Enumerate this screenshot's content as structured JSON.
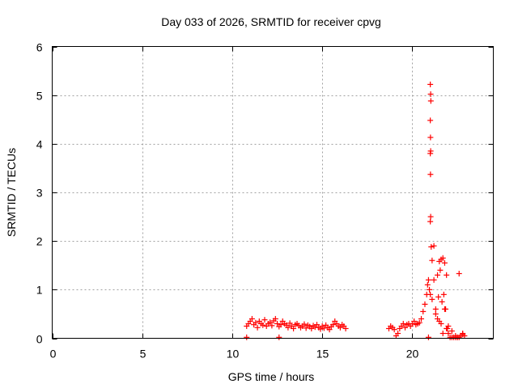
{
  "chart_data": {
    "type": "scatter",
    "title": "Day 033 of 2026, SRMTID for receiver cpvg",
    "xlabel": "GPS time / hours",
    "ylabel": "SRMTID / TECUs",
    "xlim": [
      0,
      24.5
    ],
    "ylim": [
      0,
      6
    ],
    "xticks": [
      0,
      5,
      10,
      15,
      20
    ],
    "yticks": [
      0,
      1,
      2,
      3,
      4,
      5,
      6
    ],
    "marker": "+",
    "color": "#ff0000",
    "grid": true,
    "series": [
      {
        "name": "SRMTID",
        "x": [
          10.8,
          10.9,
          11.0,
          11.1,
          11.2,
          11.3,
          11.4,
          11.5,
          11.6,
          11.7,
          11.8,
          11.9,
          12.0,
          12.1,
          12.2,
          12.3,
          12.4,
          12.5,
          12.6,
          12.7,
          12.8,
          12.9,
          13.0,
          13.1,
          13.2,
          13.3,
          13.4,
          13.5,
          13.6,
          13.7,
          13.8,
          13.9,
          14.0,
          14.1,
          14.2,
          14.3,
          14.4,
          14.5,
          14.6,
          14.7,
          14.8,
          14.9,
          15.0,
          15.1,
          15.2,
          15.3,
          15.4,
          15.5,
          15.6,
          15.7,
          15.8,
          15.9,
          16.0,
          16.1,
          16.2,
          16.3,
          10.8,
          12.6,
          18.7,
          18.8,
          18.9,
          19.0,
          19.1,
          19.2,
          19.3,
          19.4,
          19.5,
          19.6,
          19.7,
          19.8,
          19.9,
          20.0,
          20.1,
          20.2,
          20.3,
          20.4,
          20.5,
          20.6,
          20.7,
          20.8,
          20.85,
          20.9,
          20.95,
          21.0,
          21.0,
          21.02,
          21.03,
          21.0,
          21.01,
          21.02,
          21.0,
          21.01,
          21.02,
          21.0,
          21.05,
          21.1,
          21.2,
          21.3,
          21.4,
          21.45,
          21.5,
          21.55,
          21.6,
          21.65,
          21.7,
          21.75,
          21.8,
          21.85,
          21.9,
          22.0,
          22.1,
          22.2,
          22.3,
          22.4,
          22.5,
          22.6,
          22.7,
          22.8,
          22.5,
          21.2,
          21.4,
          21.6,
          21.8,
          21.95,
          20.9,
          21.1,
          21.3,
          21.5,
          21.7,
          21.9,
          22.0,
          22.2,
          22.4,
          22.6,
          22.8,
          22.9
        ],
        "y": [
          0.25,
          0.3,
          0.35,
          0.4,
          0.28,
          0.32,
          0.22,
          0.35,
          0.3,
          0.27,
          0.38,
          0.25,
          0.3,
          0.33,
          0.26,
          0.36,
          0.4,
          0.3,
          0.24,
          0.28,
          0.35,
          0.3,
          0.27,
          0.22,
          0.31,
          0.25,
          0.2,
          0.28,
          0.3,
          0.26,
          0.22,
          0.25,
          0.29,
          0.21,
          0.27,
          0.24,
          0.2,
          0.26,
          0.23,
          0.28,
          0.22,
          0.19,
          0.25,
          0.21,
          0.27,
          0.22,
          0.18,
          0.24,
          0.28,
          0.35,
          0.3,
          0.25,
          0.22,
          0.28,
          0.25,
          0.2,
          0.02,
          0.02,
          0.2,
          0.25,
          0.22,
          0.18,
          0.05,
          0.1,
          0.2,
          0.25,
          0.3,
          0.22,
          0.28,
          0.3,
          0.25,
          0.3,
          0.35,
          0.28,
          0.3,
          0.32,
          0.4,
          0.55,
          0.7,
          0.9,
          1.1,
          1.2,
          1.0,
          0.9,
          5.22,
          5.02,
          4.88,
          4.48,
          4.13,
          3.85,
          3.8,
          3.37,
          2.5,
          2.4,
          1.88,
          1.6,
          1.9,
          0.6,
          1.3,
          0.85,
          1.58,
          1.4,
          1.62,
          0.75,
          1.65,
          0.9,
          1.55,
          0.6,
          0.2,
          0.1,
          0.02,
          0.02,
          0.02,
          0.02,
          0.02,
          1.33,
          0.05,
          0.08,
          0.02,
          1.2,
          0.4,
          0.3,
          0.6,
          0.2,
          0.02,
          0.8,
          0.5,
          0.35,
          0.1,
          1.3,
          0.25,
          0.15,
          0.05,
          0.02,
          0.1,
          0.05
        ]
      }
    ]
  }
}
